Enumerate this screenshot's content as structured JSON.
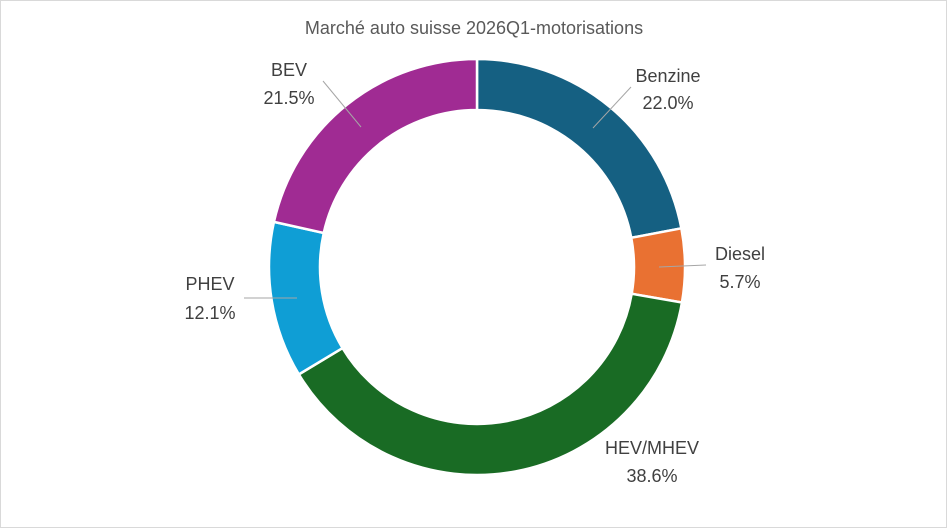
{
  "chart_data": {
    "type": "pie",
    "variant": "donut",
    "title": "Marché auto suisse 2026Q1-motorisations",
    "slices": [
      {
        "name": "Benzine",
        "value": 22.0,
        "label": "22.0%",
        "color": "#156082"
      },
      {
        "name": "Diesel",
        "value": 5.7,
        "label": "5.7%",
        "color": "#E97132"
      },
      {
        "name": "HEV/MHEV",
        "value": 38.6,
        "label": "38.6%",
        "color": "#196B24"
      },
      {
        "name": "PHEV",
        "value": 12.1,
        "label": "12.1%",
        "color": "#0F9ED5"
      },
      {
        "name": "BEV",
        "value": 21.5,
        "label": "21.5%",
        "color": "#A02B93"
      }
    ],
    "start_angle": "12 o'clock",
    "direction": "clockwise",
    "legend": "none",
    "labels": "category name and percentage, outside with leader lines"
  }
}
